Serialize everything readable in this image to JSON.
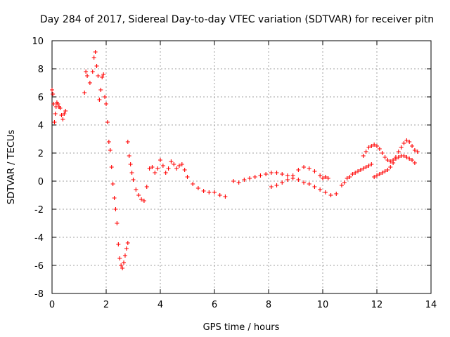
{
  "chart_data": {
    "type": "scatter",
    "title": "Day 284 of 2017, Sidereal Day-to-day VTEC variation (SDTVAR) for receiver pitn",
    "xlabel": "GPS time / hours",
    "ylabel": "SDTVAR / TECUs",
    "xlim": [
      0,
      14
    ],
    "ylim": [
      -8,
      10
    ],
    "xticks": [
      0,
      2,
      4,
      6,
      8,
      10,
      12,
      14
    ],
    "yticks": [
      -8,
      -6,
      -4,
      -2,
      0,
      2,
      4,
      6,
      8,
      10
    ],
    "xtick_labels": [
      "0",
      "2",
      "4",
      "6",
      "8",
      "10",
      "12",
      "14"
    ],
    "ytick_labels": [
      "-8",
      "-6",
      "-4",
      "-2",
      "0",
      "2",
      "4",
      "6",
      "8",
      "10"
    ],
    "grid": true,
    "marker": "plus",
    "color": "#ff0000",
    "series": [
      {
        "name": "SDTVAR",
        "x": [
          0.0,
          0.03,
          0.06,
          0.09,
          0.12,
          0.15,
          0.18,
          0.22,
          0.26,
          0.3,
          0.35,
          0.4,
          0.45,
          0.5,
          1.2,
          1.25,
          1.3,
          1.4,
          1.5,
          1.55,
          1.6,
          1.65,
          1.7,
          1.75,
          1.8,
          1.85,
          1.9,
          1.95,
          2.0,
          2.05,
          2.1,
          2.15,
          2.2,
          2.25,
          2.3,
          2.35,
          2.4,
          2.45,
          2.5,
          2.55,
          2.6,
          2.65,
          2.7,
          2.75,
          2.8,
          2.8,
          2.85,
          2.9,
          2.95,
          3.0,
          3.1,
          3.2,
          3.3,
          3.4,
          3.5,
          3.6,
          3.7,
          3.8,
          3.9,
          4.0,
          4.1,
          4.2,
          4.3,
          4.4,
          4.5,
          4.6,
          4.7,
          4.8,
          4.9,
          5.0,
          5.2,
          5.4,
          5.6,
          5.8,
          6.0,
          6.2,
          6.4,
          6.7,
          6.9,
          7.1,
          7.3,
          7.5,
          7.7,
          7.9,
          8.1,
          8.3,
          8.5,
          8.7,
          8.9,
          9.1,
          9.3,
          9.5,
          9.7,
          9.9,
          10.1,
          10.3,
          10.5,
          8.1,
          8.3,
          8.5,
          8.7,
          8.9,
          9.1,
          9.3,
          9.5,
          9.7,
          9.9,
          10.0,
          10.1,
          10.2,
          10.7,
          10.8,
          10.9,
          11.0,
          11.1,
          11.2,
          11.3,
          11.4,
          11.5,
          11.6,
          11.7,
          11.8,
          11.5,
          11.6,
          11.7,
          11.8,
          11.9,
          12.0,
          12.1,
          12.2,
          12.3,
          12.4,
          12.5,
          12.6,
          12.7,
          12.8,
          12.9,
          13.0,
          13.1,
          13.2,
          13.3,
          13.4,
          11.9,
          12.0,
          12.1,
          12.2,
          12.3,
          12.4,
          12.5,
          12.6,
          12.7,
          12.8,
          12.9,
          13.0,
          13.1,
          13.2,
          13.3,
          13.4,
          13.5
        ],
        "y": [
          6.5,
          6.2,
          5.5,
          4.2,
          4.8,
          5.3,
          5.6,
          5.5,
          5.3,
          5.2,
          4.7,
          4.4,
          4.8,
          5.0,
          6.3,
          7.8,
          7.5,
          7.0,
          7.8,
          8.8,
          9.2,
          8.2,
          7.5,
          5.8,
          6.5,
          7.4,
          7.6,
          6.0,
          5.5,
          4.2,
          2.8,
          2.2,
          1.0,
          -0.2,
          -1.2,
          -2.0,
          -3.0,
          -4.5,
          -5.5,
          -6.0,
          -6.2,
          -5.8,
          -5.3,
          -4.8,
          -4.4,
          2.8,
          1.8,
          1.2,
          0.6,
          0.1,
          -0.6,
          -1.0,
          -1.3,
          -1.4,
          -0.4,
          0.9,
          1.0,
          0.6,
          0.9,
          1.5,
          1.1,
          0.6,
          0.9,
          1.4,
          1.2,
          0.9,
          1.1,
          1.2,
          0.8,
          0.3,
          -0.2,
          -0.5,
          -0.7,
          -0.8,
          -0.8,
          -1.0,
          -1.1,
          0.0,
          -0.1,
          0.1,
          0.2,
          0.3,
          0.4,
          0.5,
          0.6,
          0.6,
          0.5,
          0.4,
          0.2,
          0.1,
          -0.1,
          -0.2,
          -0.4,
          -0.6,
          -0.8,
          -1.0,
          -0.9,
          -0.4,
          -0.3,
          -0.1,
          0.1,
          0.4,
          0.8,
          1.0,
          0.9,
          0.7,
          0.4,
          0.2,
          0.3,
          0.2,
          -0.3,
          -0.1,
          0.2,
          0.3,
          0.5,
          0.6,
          0.7,
          0.8,
          0.9,
          1.0,
          1.1,
          1.2,
          1.8,
          2.1,
          2.4,
          2.5,
          2.6,
          2.5,
          2.3,
          2.0,
          1.7,
          1.5,
          1.4,
          1.5,
          1.6,
          1.7,
          1.8,
          1.8,
          1.7,
          1.6,
          1.5,
          1.3,
          0.3,
          0.4,
          0.5,
          0.6,
          0.7,
          0.8,
          1.0,
          1.3,
          1.7,
          2.1,
          2.4,
          2.7,
          2.9,
          2.8,
          2.5,
          2.2,
          2.1
        ]
      }
    ]
  }
}
